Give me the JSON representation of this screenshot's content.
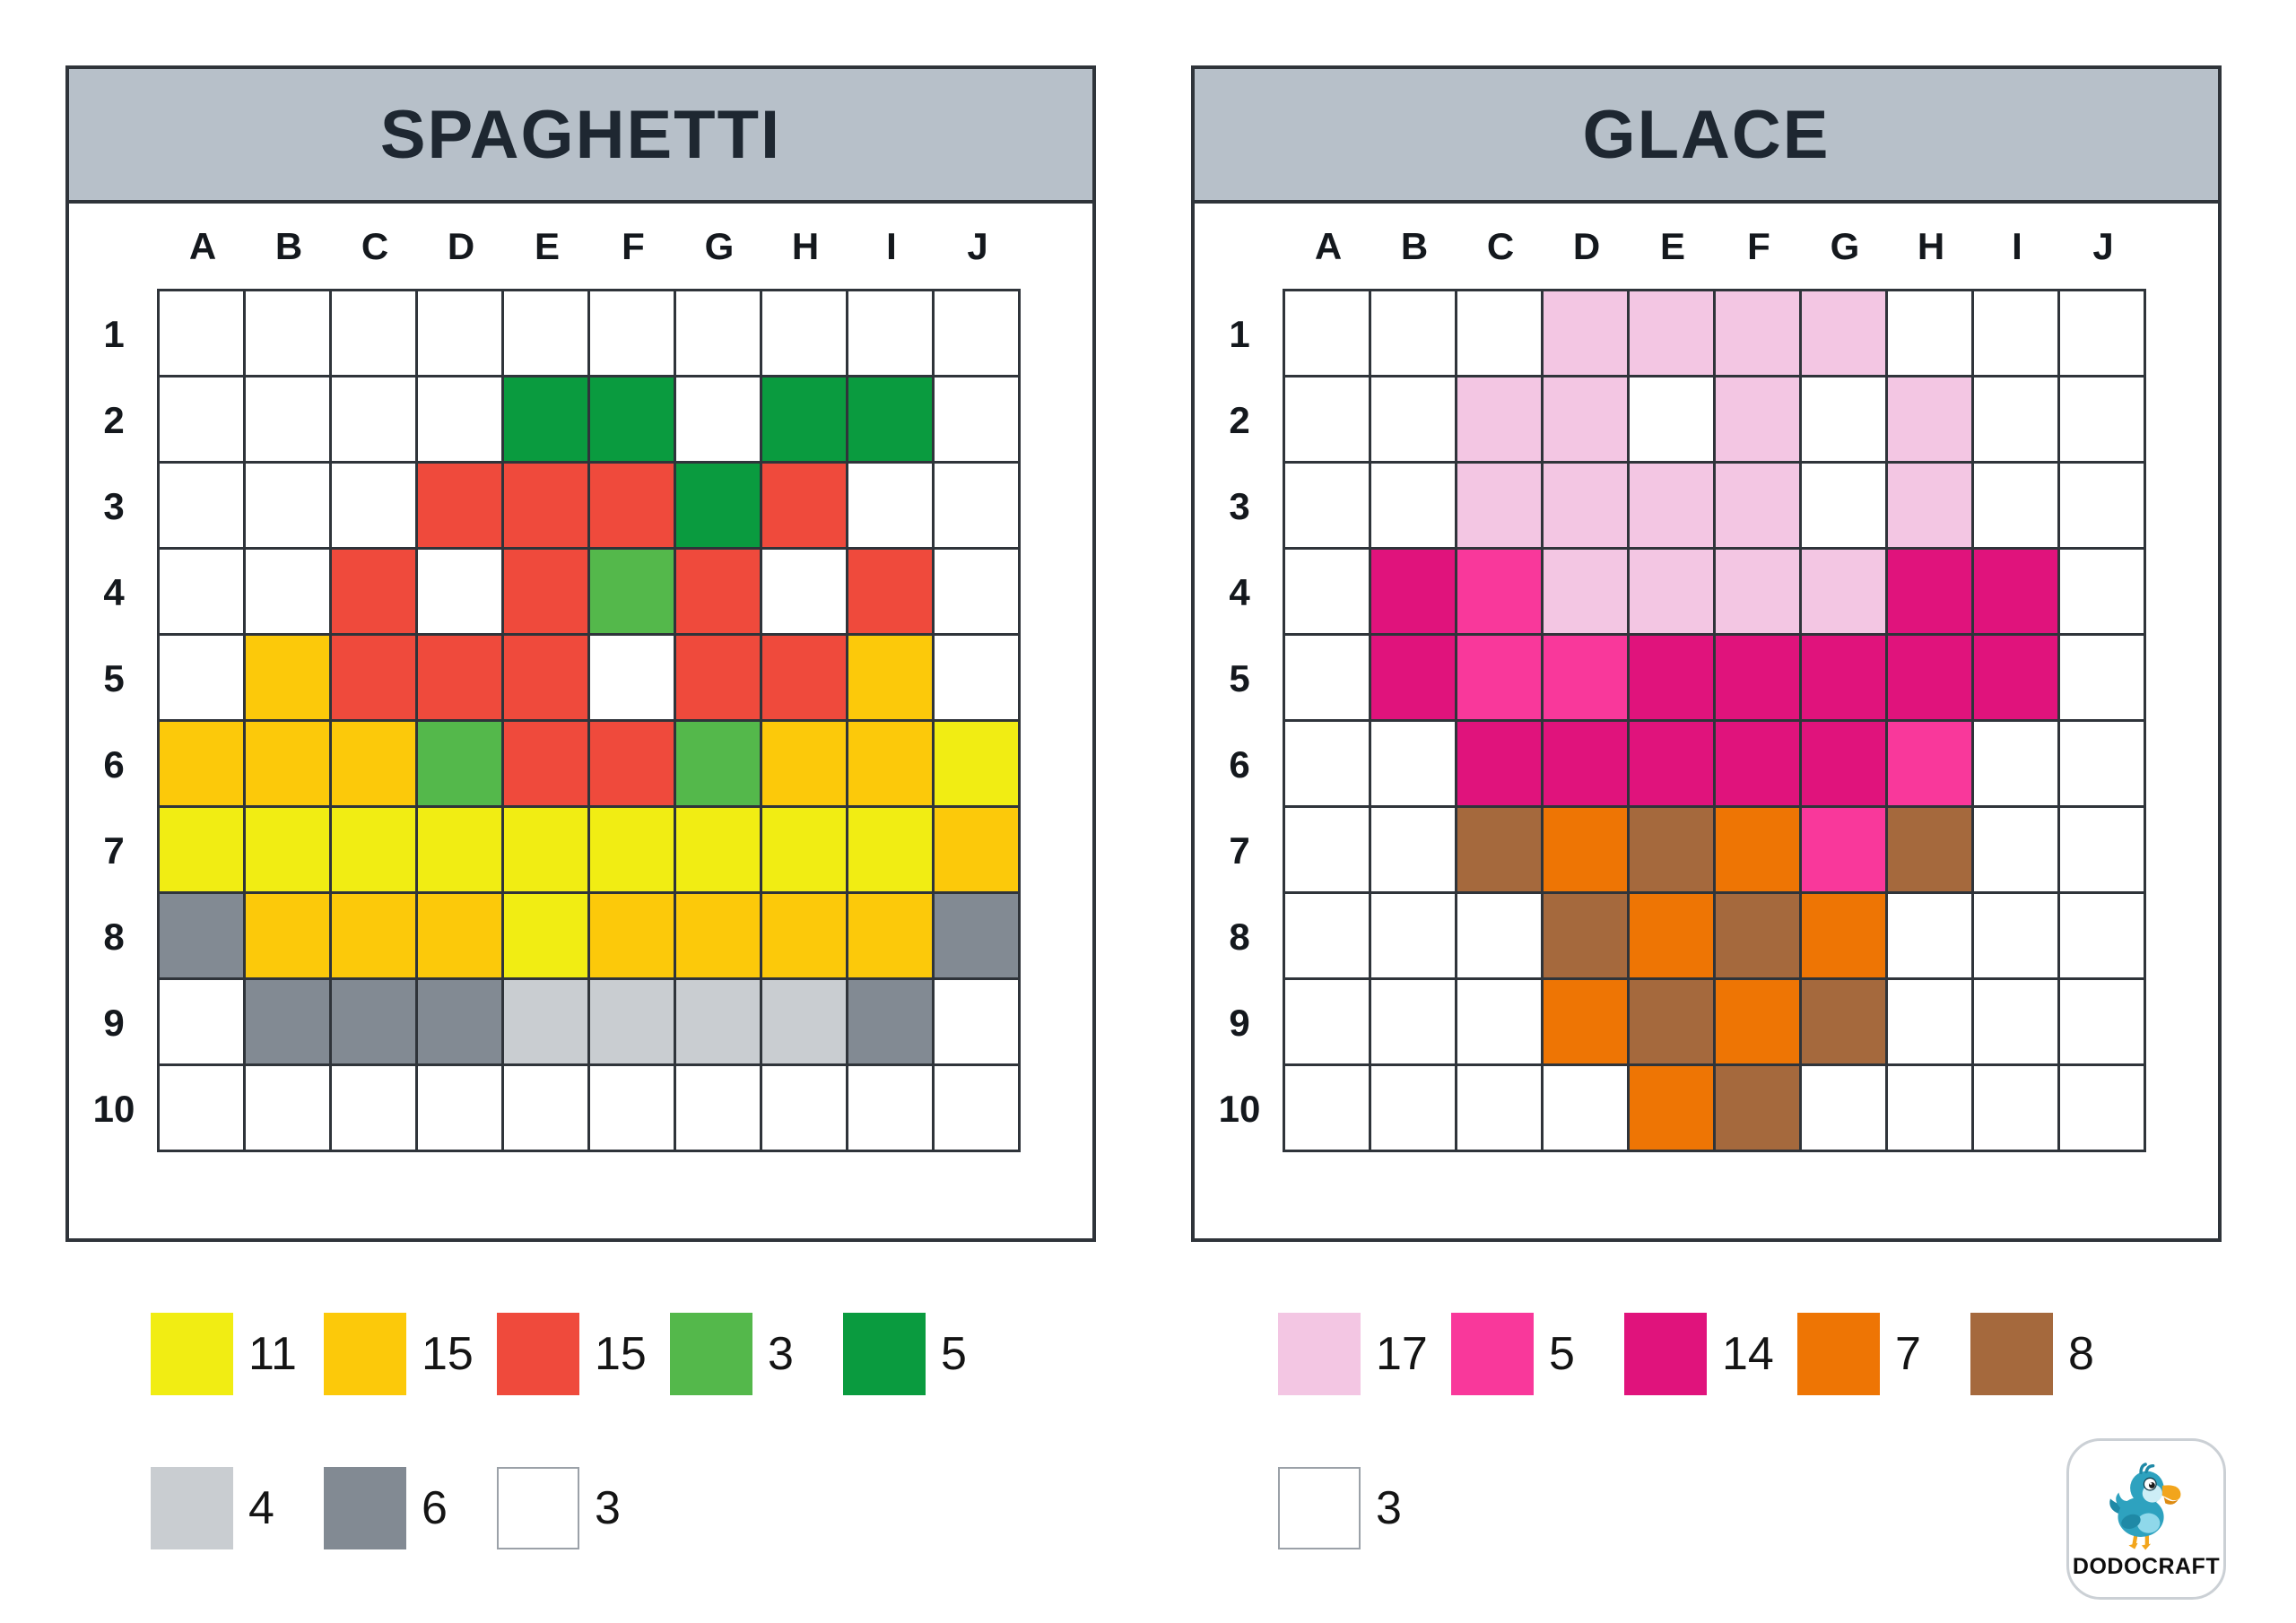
{
  "panels": [
    {
      "id": "spaghetti",
      "title": "SPAGHETTI",
      "columns": [
        "A",
        "B",
        "C",
        "D",
        "E",
        "F",
        "G",
        "H",
        "I",
        "J"
      ],
      "rows": [
        "1",
        "2",
        "3",
        "4",
        "5",
        "6",
        "7",
        "8",
        "9",
        "10"
      ],
      "grid": [
        "..........",
        "....DD.DD.",
        "...RRRDR..",
        "..RWRgRWR.",
        ".GRRRWRRG.",
        "GGGgRRgGGY",
        "YYYYYYYYYG",
        "KGGGYGGGGK",
        ".KKKLLLLK.",
        ".........."
      ],
      "legend_rows": [
        [
          {
            "key": "Y",
            "name": "yellow",
            "count": 11
          },
          {
            "key": "G",
            "name": "golden-yellow",
            "count": 15
          },
          {
            "key": "R",
            "name": "red",
            "count": 15
          },
          {
            "key": "g",
            "name": "green",
            "count": 3
          },
          {
            "key": "D",
            "name": "dark-green",
            "count": 5
          }
        ],
        [
          {
            "key": "L",
            "name": "light-gray",
            "count": 4
          },
          {
            "key": "K",
            "name": "dark-gray",
            "count": 6
          },
          {
            "key": "W",
            "name": "white",
            "count": 3,
            "bordered": true
          }
        ]
      ]
    },
    {
      "id": "glace",
      "title": "GLACE",
      "columns": [
        "A",
        "B",
        "C",
        "D",
        "E",
        "F",
        "G",
        "H",
        "I",
        "J"
      ],
      "rows": [
        "1",
        "2",
        "3",
        "4",
        "5",
        "6",
        "7",
        "8",
        "9",
        "10"
      ],
      "grid": [
        "...pppp...",
        "..ppWpWp..",
        "..ppppWp..",
        ".MPppppMM.",
        ".MPPMMMMM.",
        "..MMMMMP..",
        "..BOBOPB..",
        "...BOBO...",
        "...OBOB...",
        "....OB...."
      ],
      "legend_rows": [
        [
          {
            "key": "p",
            "name": "light-pink",
            "count": 17
          },
          {
            "key": "P",
            "name": "hot-pink",
            "count": 5
          },
          {
            "key": "M",
            "name": "dark-pink",
            "count": 14
          },
          {
            "key": "O",
            "name": "orange",
            "count": 7
          },
          {
            "key": "B",
            "name": "brown",
            "count": 8
          }
        ],
        [
          {
            "key": "W",
            "name": "white",
            "count": 3,
            "bordered": true
          }
        ]
      ]
    }
  ],
  "palette": {
    "spaghetti": {
      "Y": "#F1ED13",
      "G": "#FCC90A",
      "R": "#EF4A3C",
      "g": "#54B84B",
      "D": "#0A9B3F",
      "L": "#C9CDD1",
      "K": "#828A93",
      "W": "#FFFFFF",
      ".": "#FFFFFF"
    },
    "glace": {
      "p": "#F3C6E3",
      "P": "#F9389B",
      "M": "#E0137C",
      "O": "#EE7504",
      "B": "#A5693D",
      "W": "#FFFFFF",
      ".": "#FFFFFF"
    }
  },
  "logo": {
    "text": "DODOCRAFT"
  }
}
